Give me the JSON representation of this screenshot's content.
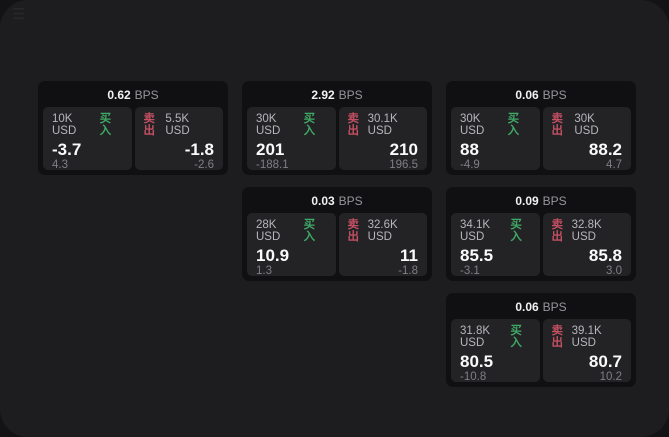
{
  "app": {
    "menu_icon": "☰"
  },
  "colors": {
    "buy": "#3fa865",
    "sell": "#c34f62",
    "panel_bg": "#1d1d1f",
    "card_bg": "#101013",
    "tile_bg": "#232326"
  },
  "cards": [
    {
      "bps_value": "0.62",
      "bps_unit": "BPS",
      "buy": {
        "amount": "10K USD",
        "side_label": "买入",
        "value": "-3.7",
        "delta": "4.3"
      },
      "sell": {
        "amount": "5.5K USD",
        "side_label": "卖出",
        "value": "-1.8",
        "delta": "-2.6"
      }
    },
    {
      "bps_value": "2.92",
      "bps_unit": "BPS",
      "buy": {
        "amount": "30K USD",
        "side_label": "买入",
        "value": "201",
        "delta": "-188.1"
      },
      "sell": {
        "amount": "30.1K USD",
        "side_label": "卖出",
        "value": "210",
        "delta": "196.5"
      }
    },
    {
      "bps_value": "0.06",
      "bps_unit": "BPS",
      "buy": {
        "amount": "30K USD",
        "side_label": "买入",
        "value": "88",
        "delta": "-4.9"
      },
      "sell": {
        "amount": "30K USD",
        "side_label": "卖出",
        "value": "88.2",
        "delta": "4.7"
      }
    },
    {
      "bps_value": "0.03",
      "bps_unit": "BPS",
      "buy": {
        "amount": "28K USD",
        "side_label": "买入",
        "value": "10.9",
        "delta": "1.3"
      },
      "sell": {
        "amount": "32.6K USD",
        "side_label": "卖出",
        "value": "11",
        "delta": "-1.8"
      }
    },
    {
      "bps_value": "0.09",
      "bps_unit": "BPS",
      "buy": {
        "amount": "34.1K USD",
        "side_label": "买入",
        "value": "85.5",
        "delta": "-3.1"
      },
      "sell": {
        "amount": "32.8K USD",
        "side_label": "卖出",
        "value": "85.8",
        "delta": "3.0"
      }
    },
    {
      "bps_value": "0.06",
      "bps_unit": "BPS",
      "buy": {
        "amount": "31.8K USD",
        "side_label": "买入",
        "value": "80.5",
        "delta": "-10.8"
      },
      "sell": {
        "amount": "39.1K USD",
        "side_label": "卖出",
        "value": "80.7",
        "delta": "10.2"
      }
    }
  ]
}
